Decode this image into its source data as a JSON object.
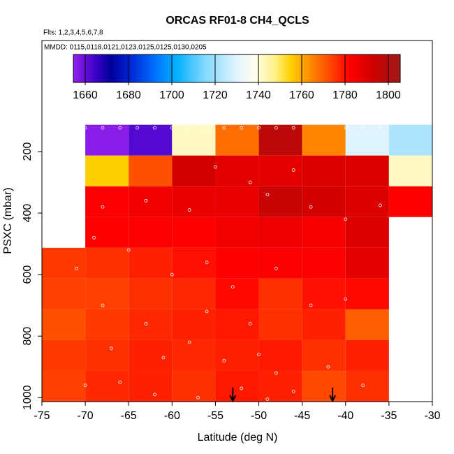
{
  "chart_data": {
    "type": "heatmap",
    "title": "ORCAS RF01-8 CH4_QCLS",
    "subtitle": "Flts: 1,2,3,4,5,6,7,8",
    "annotation": "MMDD: 0115,0118,0121,0123,0125,0125,0130,0205",
    "x_label": "Latitude (deg N)",
    "y_label": "PSXC (mbar)",
    "xlim": [
      -75,
      -30
    ],
    "xticks": [
      -75,
      -70,
      -65,
      -60,
      -55,
      -50,
      -45,
      -40,
      -35,
      -30
    ],
    "ylim": [
      1013,
      -161
    ],
    "yticks": [
      200,
      400,
      600,
      800,
      1000
    ],
    "x_bins": [
      -75,
      -70,
      -65,
      -60,
      -55,
      -50,
      -45,
      -40,
      -35
    ],
    "y_bins": [
      113,
      213,
      313,
      413,
      513,
      613,
      713,
      813,
      913,
      1013
    ],
    "z": [
      [
        null,
        1656,
        1662,
        1742,
        1768,
        1798,
        1765,
        1730,
        1722
      ],
      [
        null,
        1755,
        1772,
        1792,
        1788,
        1788,
        1790,
        1790,
        1742
      ],
      [
        null,
        1783,
        1785,
        1787,
        1787,
        1795,
        1792,
        1790,
        1782
      ],
      [
        null,
        1782,
        1783,
        1782,
        1785,
        1786,
        1784,
        1790,
        null
      ],
      [
        1775,
        1776,
        1778,
        1780,
        1782,
        1783,
        1783,
        1788,
        null
      ],
      [
        1774,
        1774,
        1776,
        1777,
        1781,
        1776,
        1780,
        1781,
        null
      ],
      [
        1772,
        1775,
        1777,
        1778,
        1779,
        1776,
        1778,
        1770,
        null
      ],
      [
        1775,
        1776,
        1778,
        1777,
        1778,
        1779,
        1776,
        1778,
        null
      ],
      [
        1774,
        1777,
        1778,
        1776,
        1779,
        1778,
        1773,
        1776,
        null
      ]
    ],
    "clim": [
      1654.5,
      1805.5
    ],
    "cticks": [
      1660,
      1680,
      1700,
      1720,
      1740,
      1760,
      1780,
      1800
    ],
    "colorscale": [
      [
        1654,
        "#9a22f0"
      ],
      [
        1665,
        "#3a00c8"
      ],
      [
        1672,
        "#00009a"
      ],
      [
        1680,
        "#0020d0"
      ],
      [
        1692,
        "#0070ff"
      ],
      [
        1702,
        "#00b0ff"
      ],
      [
        1715,
        "#80d8ff"
      ],
      [
        1730,
        "#e0f4ff"
      ],
      [
        1738,
        "#fffff0"
      ],
      [
        1748,
        "#fff080"
      ],
      [
        1755,
        "#ffd000"
      ],
      [
        1762,
        "#ff9a00"
      ],
      [
        1772,
        "#ff5000"
      ],
      [
        1782,
        "#ff0000"
      ],
      [
        1793,
        "#d00000"
      ],
      [
        1805,
        "#a01818"
      ]
    ],
    "points": {
      "x": [
        -72,
        -70,
        -68,
        -66,
        -64,
        -62,
        -60,
        -58,
        -56,
        -54,
        -52,
        -50,
        -48,
        -46,
        -40,
        -38,
        -36,
        -68,
        -63,
        -58,
        -55,
        -51,
        -49,
        -46,
        -44,
        -40,
        -36,
        -69,
        -65,
        -60,
        -56,
        -53,
        -48,
        -44,
        -40,
        -71,
        -68,
        -63,
        -58,
        -54,
        -50,
        -48,
        -46,
        -70,
        -66,
        -62,
        -57,
        -52,
        -49,
        -38,
        -42,
        -61,
        -67,
        -56,
        -51
      ],
      "y": [
        123,
        123,
        123,
        123,
        123,
        123,
        123,
        123,
        123,
        123,
        123,
        123,
        123,
        123,
        123,
        123,
        123,
        380,
        360,
        390,
        250,
        300,
        340,
        260,
        380,
        420,
        375,
        480,
        520,
        600,
        560,
        640,
        580,
        700,
        680,
        580,
        700,
        760,
        820,
        880,
        860,
        920,
        980,
        960,
        950,
        990,
        1000,
        970,
        1005,
        960,
        900,
        870,
        840,
        720,
        760
      ]
    },
    "arrows_x": [
      -53,
      -41.5
    ]
  }
}
